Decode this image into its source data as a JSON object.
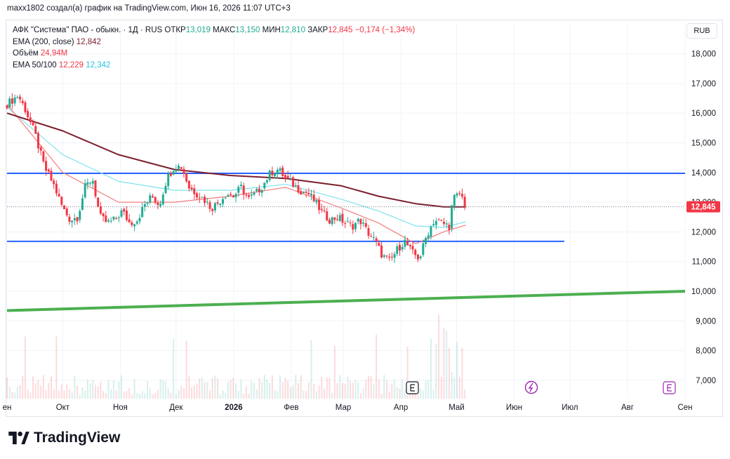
{
  "header": {
    "credit": "maxx1802 создал(а) график на TradingView.com, Июн 16, 2026 11:07 UTC+3"
  },
  "legend": {
    "symbol": "АФК \"Система\" ПАО - обыкн. · 1Д · RUS",
    "open_label": "ОТКР",
    "open": "13,019",
    "high_label": "МАКС",
    "high": "13,150",
    "low_label": "МИН",
    "low": "12,810",
    "close_label": "ЗАКР",
    "close": "12,845",
    "change": "−0,174 (−1,34%)",
    "ema200_label": "EMA (200, close)",
    "ema200_value": "12,842",
    "volume_label": "Объём",
    "volume_value": "24,94M",
    "ema50100_label": "EMA 50/100",
    "ema50_value": "12,229",
    "ema100_value": "12,342"
  },
  "currency_button": "RUB",
  "footer": {
    "brand": "TradingView"
  },
  "chart_data": {
    "type": "candlestick",
    "y_ticks": [
      "18,000",
      "17,000",
      "16,000",
      "15,000",
      "14,000",
      "13,000",
      "12,000",
      "11,000",
      "10,000",
      "9,000",
      "8,000",
      "7,000"
    ],
    "y_tick_values": [
      18,
      17,
      16,
      15,
      14,
      13,
      12,
      11,
      10,
      9,
      8,
      7
    ],
    "ylim": [
      6.5,
      18.8
    ],
    "x_ticks": [
      "ен",
      "Окт",
      "Ноя",
      "Дек",
      "2026",
      "Фев",
      "Мар",
      "Апр",
      "Май",
      "Июн",
      "Июл",
      "Авг",
      "Сен"
    ],
    "x_tick_times": [
      0,
      30,
      61,
      91,
      122,
      153,
      181,
      212,
      242,
      273,
      303,
      334,
      365
    ],
    "last_price_label": "12,845",
    "last_price": 12.845,
    "close_path": [
      [
        0,
        16.3
      ],
      [
        6,
        16.6
      ],
      [
        10,
        16.1
      ],
      [
        15,
        15.3
      ],
      [
        20,
        14.2
      ],
      [
        25,
        13.6
      ],
      [
        30,
        12.8
      ],
      [
        34,
        12.4
      ],
      [
        38,
        12.5
      ],
      [
        42,
        13.5
      ],
      [
        46,
        13.8
      ],
      [
        50,
        12.5
      ],
      [
        54,
        12.3
      ],
      [
        58,
        12.4
      ],
      [
        62,
        12.7
      ],
      [
        66,
        12.3
      ],
      [
        70,
        12.4
      ],
      [
        74,
        12.9
      ],
      [
        78,
        13.2
      ],
      [
        82,
        12.9
      ],
      [
        86,
        13.8
      ],
      [
        90,
        14.2
      ],
      [
        94,
        14.2
      ],
      [
        98,
        13.5
      ],
      [
        102,
        13.3
      ],
      [
        106,
        13.1
      ],
      [
        110,
        12.8
      ],
      [
        114,
        13.0
      ],
      [
        118,
        13.3
      ],
      [
        122,
        13.2
      ],
      [
        126,
        13.5
      ],
      [
        130,
        13.1
      ],
      [
        134,
        13.3
      ],
      [
        138,
        13.6
      ],
      [
        142,
        14.0
      ],
      [
        146,
        14.1
      ],
      [
        150,
        13.8
      ],
      [
        154,
        13.6
      ],
      [
        158,
        13.4
      ],
      [
        162,
        13.3
      ],
      [
        166,
        13.0
      ],
      [
        170,
        12.6
      ],
      [
        174,
        12.4
      ],
      [
        178,
        12.5
      ],
      [
        182,
        12.3
      ],
      [
        186,
        12.2
      ],
      [
        190,
        12.4
      ],
      [
        194,
        12.0
      ],
      [
        198,
        11.7
      ],
      [
        202,
        11.2
      ],
      [
        206,
        11.0
      ],
      [
        210,
        11.4
      ],
      [
        214,
        11.7
      ],
      [
        218,
        11.3
      ],
      [
        222,
        11.1
      ],
      [
        226,
        11.9
      ],
      [
        230,
        12.4
      ],
      [
        234,
        12.3
      ],
      [
        238,
        12.2
      ],
      [
        240,
        13.1
      ],
      [
        244,
        13.3
      ],
      [
        247,
        12.85
      ]
    ],
    "ema200": [
      [
        0,
        16.0
      ],
      [
        30,
        15.4
      ],
      [
        60,
        14.6
      ],
      [
        90,
        14.1
      ],
      [
        120,
        13.9
      ],
      [
        150,
        13.8
      ],
      [
        180,
        13.55
      ],
      [
        200,
        13.2
      ],
      [
        220,
        12.95
      ],
      [
        235,
        12.84
      ],
      [
        247,
        12.842
      ]
    ],
    "ema50": [
      [
        0,
        16.3
      ],
      [
        30,
        14.0
      ],
      [
        60,
        13.0
      ],
      [
        90,
        13.0
      ],
      [
        120,
        13.2
      ],
      [
        150,
        13.5
      ],
      [
        180,
        12.8
      ],
      [
        200,
        12.3
      ],
      [
        220,
        11.6
      ],
      [
        235,
        12.0
      ],
      [
        247,
        12.229
      ]
    ],
    "ema100": [
      [
        0,
        16.2
      ],
      [
        30,
        14.6
      ],
      [
        60,
        13.7
      ],
      [
        90,
        13.4
      ],
      [
        120,
        13.4
      ],
      [
        150,
        13.6
      ],
      [
        180,
        13.1
      ],
      [
        200,
        12.7
      ],
      [
        220,
        12.2
      ],
      [
        235,
        12.15
      ],
      [
        247,
        12.342
      ]
    ],
    "hlines": [
      {
        "y": 13.97,
        "x_from": 0,
        "x_to": 365,
        "color": "#2962ff"
      },
      {
        "y": 11.68,
        "x_from": 0,
        "x_to": 300,
        "color": "#2962ff"
      }
    ],
    "trendline": {
      "from": [
        0,
        9.35
      ],
      "to": [
        365,
        10.0
      ],
      "color": "#4caf50"
    },
    "colors": {
      "up": "#22ab94",
      "down": "#f23645",
      "ema200": "#7b1f2c",
      "ema50": "#f57c7c",
      "ema100": "#7fe3ea",
      "price_tag": "#f23645"
    }
  }
}
